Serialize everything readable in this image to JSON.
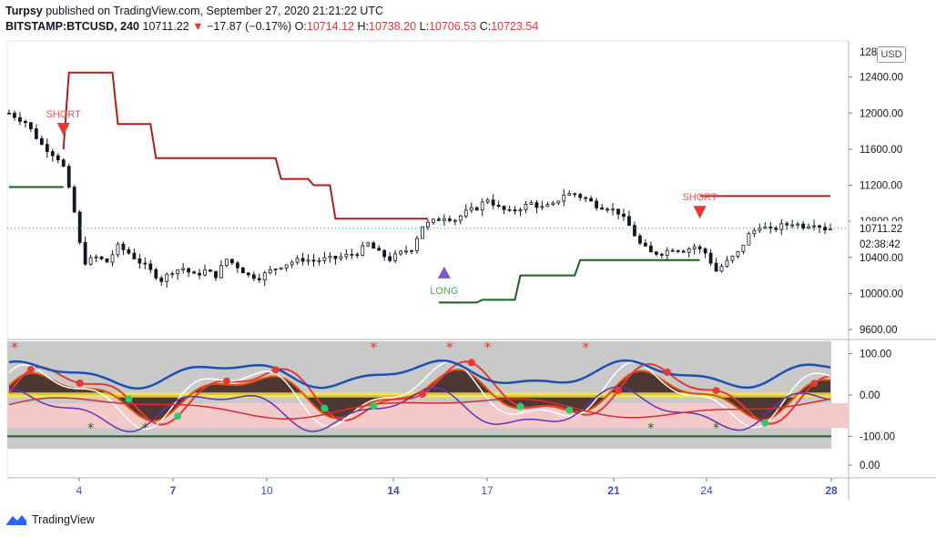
{
  "header": {
    "author": "Turpsy",
    "published_text": "published on TradingView.com, September 27, 2020 21:21:22 UTC",
    "symbol": "BITSTAMP:BTCUSD, 240",
    "last": "10711.22",
    "change": "−17.87 (−0.17%)",
    "o_label": "O:",
    "o_value": "10714.12",
    "h_label": "H:",
    "h_value": "10738.20",
    "l_label": "L:",
    "l_value": "10706.53",
    "c_label": "C:",
    "c_value": "10723.54"
  },
  "currency_label": "USD",
  "brand": "TradingView",
  "price_tags": {
    "last_price": "10711.22",
    "countdown": "02:38:42"
  },
  "chart_data": [
    {
      "type": "candlestick",
      "title": "",
      "x_tick_labels": [
        "4",
        "7",
        "10",
        "14",
        "17",
        "21",
        "24",
        "28"
      ],
      "y_tick_labels": [
        "12400.00",
        "12000.00",
        "11600.00",
        "11200.00",
        "10800.00",
        "10400.00",
        "10000.00",
        "9600.00"
      ],
      "y_ticks": [
        12400,
        12000,
        11600,
        11200,
        10800,
        10400,
        10000,
        9600
      ],
      "y_top_partial_label": "128",
      "ylim": [
        9500,
        12800
      ],
      "candle_count": 152,
      "close_path": [
        [
          0,
          12000
        ],
        [
          3,
          11900
        ],
        [
          6,
          11650
        ],
        [
          9,
          11500
        ],
        [
          10,
          11400
        ],
        [
          12,
          10900
        ],
        [
          13,
          10550
        ],
        [
          14,
          10350
        ],
        [
          16,
          10400
        ],
        [
          18,
          10350
        ],
        [
          20,
          10520
        ],
        [
          22,
          10450
        ],
        [
          24,
          10350
        ],
        [
          26,
          10250
        ],
        [
          28,
          10150
        ],
        [
          30,
          10250
        ],
        [
          32,
          10280
        ],
        [
          34,
          10200
        ],
        [
          36,
          10250
        ],
        [
          38,
          10200
        ],
        [
          40,
          10380
        ],
        [
          42,
          10300
        ],
        [
          44,
          10200
        ],
        [
          46,
          10180
        ],
        [
          48,
          10250
        ],
        [
          50,
          10310
        ],
        [
          52,
          10350
        ],
        [
          54,
          10380
        ],
        [
          56,
          10360
        ],
        [
          58,
          10380
        ],
        [
          60,
          10390
        ],
        [
          62,
          10420
        ],
        [
          64,
          10450
        ],
        [
          66,
          10550
        ],
        [
          68,
          10450
        ],
        [
          70,
          10380
        ],
        [
          72,
          10450
        ],
        [
          74,
          10500
        ],
        [
          76,
          10750
        ],
        [
          78,
          10800
        ],
        [
          80,
          10850
        ],
        [
          82,
          10820
        ],
        [
          84,
          10900
        ],
        [
          86,
          10950
        ],
        [
          88,
          11050
        ],
        [
          90,
          10950
        ],
        [
          92,
          10900
        ],
        [
          94,
          10950
        ],
        [
          96,
          11000
        ],
        [
          98,
          10950
        ],
        [
          100,
          10980
        ],
        [
          102,
          11100
        ],
        [
          104,
          11100
        ],
        [
          106,
          11050
        ],
        [
          108,
          10980
        ],
        [
          110,
          10950
        ],
        [
          112,
          10900
        ],
        [
          114,
          10750
        ],
        [
          116,
          10550
        ],
        [
          118,
          10450
        ],
        [
          120,
          10450
        ],
        [
          122,
          10500
        ],
        [
          124,
          10480
        ],
        [
          126,
          10520
        ],
        [
          128,
          10450
        ],
        [
          130,
          10250
        ],
        [
          132,
          10350
        ],
        [
          134,
          10450
        ],
        [
          136,
          10650
        ],
        [
          138,
          10750
        ],
        [
          140,
          10700
        ],
        [
          142,
          10750
        ],
        [
          144,
          10780
        ],
        [
          146,
          10750
        ],
        [
          148,
          10780
        ],
        [
          150,
          10720
        ],
        [
          151,
          10723
        ]
      ],
      "overlays": [
        {
          "name": "",
          "color": "#b71c1c",
          "points": [
            [
              0,
              null
            ],
            [
              10,
              11600
            ],
            [
              11,
              12450
            ],
            [
              19,
              12450
            ],
            [
              20,
              11880
            ],
            [
              26,
              11880
            ],
            [
              27,
              11500
            ],
            [
              49,
              11500
            ],
            [
              50,
              11270
            ],
            [
              55,
              11270
            ],
            [
              56,
              11200
            ],
            [
              59,
              11200
            ],
            [
              60,
              10830
            ],
            [
              77,
              10830
            ],
            [
              78,
              null
            ],
            [
              126,
              null
            ],
            [
              127,
              11080
            ],
            [
              151,
              11080
            ]
          ]
        },
        {
          "name": "",
          "color": "#1b5e20",
          "points": [
            [
              0,
              11180
            ],
            [
              10,
              11180
            ],
            [
              11,
              null
            ],
            [
              78,
              null
            ],
            [
              79,
              9900
            ],
            [
              86,
              9900
            ],
            [
              87,
              9930
            ],
            [
              93,
              9930
            ],
            [
              94,
              10200
            ],
            [
              104,
              10200
            ],
            [
              105,
              10370
            ],
            [
              127,
              10370
            ],
            [
              128,
              null
            ]
          ]
        }
      ],
      "annotations": [
        {
          "text": "SHORT",
          "at": [
            10,
            11750
          ],
          "color": "#ef5350"
        },
        {
          "text": "LONG",
          "at": [
            80,
            10400
          ],
          "color": "#4caf50"
        },
        {
          "text": "SHORT",
          "at": [
            127,
            10830
          ],
          "color": "#ef5350"
        }
      ]
    },
    {
      "type": "line",
      "title": "",
      "y_tick_labels": [
        "100.00",
        "0.00",
        "-100.00",
        "0.00"
      ],
      "y_ticks": [
        100,
        0,
        -100
      ],
      "ylim": [
        -130,
        130
      ],
      "bands": {
        "upper": 100,
        "lower": -100,
        "zero": 0
      },
      "star_markers_top_x": [
        1,
        67,
        81,
        88,
        106
      ],
      "star_markers_bottom_x": [
        15,
        25,
        118,
        130
      ]
    }
  ],
  "colors": {
    "bull_body": "#ffffff",
    "bear_body": "#131722",
    "short_line": "#b71c1c",
    "long_line": "#1b5e20",
    "short_arrow": "#e53935",
    "long_arrow": "#7e57c2",
    "osc_bg": "#c9c9c9",
    "osc_band": "#f3c9c9"
  }
}
